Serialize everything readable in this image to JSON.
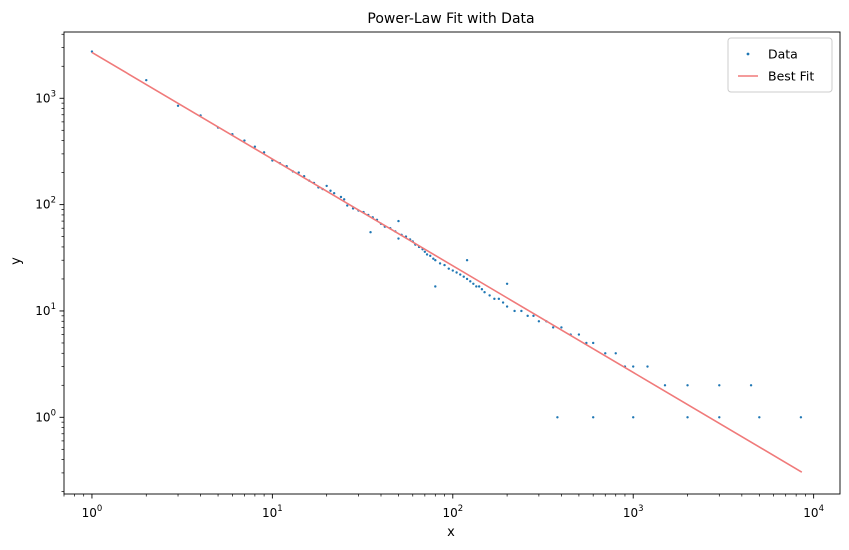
{
  "chart_data": {
    "type": "scatter",
    "title": "Power-Law Fit with Data",
    "xlabel": "x",
    "ylabel": "y",
    "xscale": "log",
    "yscale": "log",
    "xlim": [
      0.7,
      14000
    ],
    "ylim": [
      0.19,
      4200
    ],
    "grid": false,
    "legend_position": "top-right",
    "x_ticks": [
      {
        "base": "10",
        "exp": "0"
      },
      {
        "base": "10",
        "exp": "1"
      },
      {
        "base": "10",
        "exp": "2"
      },
      {
        "base": "10",
        "exp": "3"
      },
      {
        "base": "10",
        "exp": "4"
      }
    ],
    "y_ticks": [
      {
        "base": "10",
        "exp": "0"
      },
      {
        "base": "10",
        "exp": "1"
      },
      {
        "base": "10",
        "exp": "2"
      },
      {
        "base": "10",
        "exp": "3"
      }
    ],
    "series": [
      {
        "name": "Data",
        "kind": "scatter",
        "color": "#1f77b4",
        "points": [
          [
            1,
            2750
          ],
          [
            2,
            1480
          ],
          [
            3,
            850
          ],
          [
            4,
            690
          ],
          [
            5,
            530
          ],
          [
            6,
            460
          ],
          [
            7,
            400
          ],
          [
            8,
            350
          ],
          [
            9,
            310
          ],
          [
            10,
            260
          ],
          [
            11,
            245
          ],
          [
            12,
            230
          ],
          [
            13,
            205
          ],
          [
            14,
            200
          ],
          [
            15,
            185
          ],
          [
            16,
            168
          ],
          [
            17,
            160
          ],
          [
            18,
            145
          ],
          [
            19,
            140
          ],
          [
            20,
            150
          ],
          [
            21,
            135
          ],
          [
            22,
            128
          ],
          [
            24,
            118
          ],
          [
            25,
            112
          ],
          [
            26,
            98
          ],
          [
            28,
            92
          ],
          [
            30,
            88
          ],
          [
            32,
            85
          ],
          [
            34,
            80
          ],
          [
            36,
            76
          ],
          [
            38,
            72
          ],
          [
            40,
            66
          ],
          [
            42,
            62
          ],
          [
            45,
            60
          ],
          [
            48,
            56
          ],
          [
            50,
            70
          ],
          [
            52,
            52
          ],
          [
            55,
            50
          ],
          [
            58,
            47
          ],
          [
            60,
            45
          ],
          [
            62,
            42
          ],
          [
            65,
            40
          ],
          [
            68,
            38
          ],
          [
            70,
            36
          ],
          [
            72,
            34
          ],
          [
            75,
            33
          ],
          [
            78,
            31
          ],
          [
            80,
            30
          ],
          [
            85,
            28
          ],
          [
            90,
            27
          ],
          [
            95,
            25
          ],
          [
            100,
            24
          ],
          [
            105,
            23
          ],
          [
            110,
            22
          ],
          [
            115,
            21
          ],
          [
            120,
            20
          ],
          [
            125,
            19
          ],
          [
            130,
            18
          ],
          [
            135,
            17
          ],
          [
            140,
            17
          ],
          [
            145,
            16
          ],
          [
            150,
            15
          ],
          [
            160,
            14
          ],
          [
            170,
            13
          ],
          [
            180,
            13
          ],
          [
            190,
            12
          ],
          [
            200,
            11
          ],
          [
            220,
            10
          ],
          [
            240,
            10
          ],
          [
            260,
            9
          ],
          [
            280,
            9
          ],
          [
            300,
            8
          ],
          [
            330,
            8
          ],
          [
            360,
            7
          ],
          [
            400,
            7
          ],
          [
            450,
            6
          ],
          [
            500,
            6
          ],
          [
            550,
            5
          ],
          [
            600,
            5
          ],
          [
            700,
            4
          ],
          [
            800,
            4
          ],
          [
            900,
            3
          ],
          [
            1000,
            3
          ],
          [
            1200,
            3
          ],
          [
            1500,
            2
          ],
          [
            2000,
            2
          ],
          [
            3000,
            2
          ],
          [
            4500,
            2
          ],
          [
            380,
            1
          ],
          [
            600,
            1
          ],
          [
            1000,
            1
          ],
          [
            2000,
            1
          ],
          [
            3000,
            1
          ],
          [
            5000,
            1
          ],
          [
            8500,
            1
          ],
          [
            80,
            17
          ],
          [
            35,
            55
          ],
          [
            50,
            48
          ],
          [
            120,
            30
          ],
          [
            200,
            18
          ]
        ]
      },
      {
        "name": "Best Fit",
        "kind": "line",
        "color": "#f07a7a",
        "points": [
          [
            1,
            2700
          ],
          [
            8600,
            0.305
          ]
        ]
      }
    ]
  }
}
